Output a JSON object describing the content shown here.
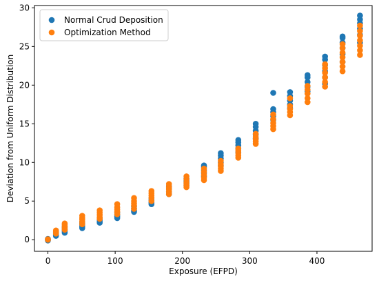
{
  "chart_data": {
    "type": "scatter",
    "title": "",
    "xlabel": "Exposure (EFPD)",
    "ylabel": "Deviation from Uniform Distribution",
    "xlim": [
      -20,
      482
    ],
    "ylim": [
      -1.5,
      30.3
    ],
    "xticks": [
      0,
      100,
      200,
      300,
      400
    ],
    "yticks": [
      0,
      5,
      10,
      15,
      20,
      25,
      30
    ],
    "grid": false,
    "legend_position": "top-left",
    "series": [
      {
        "name": "Normal Crud Deposition",
        "color": "#1f77b4",
        "points": [
          [
            0,
            0
          ],
          [
            0,
            0.1
          ],
          [
            0,
            -0.1
          ],
          [
            12,
            0.5
          ],
          [
            12,
            0.7
          ],
          [
            12,
            0.9
          ],
          [
            12,
            1.0
          ],
          [
            25,
            0.9
          ],
          [
            25,
            1.1
          ],
          [
            25,
            1.3
          ],
          [
            25,
            1.5
          ],
          [
            25,
            1.7
          ],
          [
            51,
            1.5
          ],
          [
            51,
            1.7
          ],
          [
            51,
            1.9
          ],
          [
            51,
            2.1
          ],
          [
            51,
            2.3
          ],
          [
            77,
            2.2
          ],
          [
            77,
            2.4
          ],
          [
            77,
            2.6
          ],
          [
            77,
            2.8
          ],
          [
            103,
            2.8
          ],
          [
            103,
            3.0
          ],
          [
            103,
            3.2
          ],
          [
            103,
            3.5
          ],
          [
            128,
            3.6
          ],
          [
            128,
            3.8
          ],
          [
            128,
            4.0
          ],
          [
            128,
            4.3
          ],
          [
            154,
            4.6
          ],
          [
            154,
            4.8
          ],
          [
            154,
            5.1
          ],
          [
            154,
            5.4
          ],
          [
            180,
            5.9
          ],
          [
            180,
            6.2
          ],
          [
            180,
            6.6
          ],
          [
            180,
            6.9
          ],
          [
            206,
            7.0
          ],
          [
            206,
            7.3
          ],
          [
            206,
            7.6
          ],
          [
            206,
            7.9
          ],
          [
            232,
            8.2
          ],
          [
            232,
            8.6
          ],
          [
            232,
            9.0
          ],
          [
            232,
            9.4
          ],
          [
            232,
            9.6
          ],
          [
            257,
            9.6
          ],
          [
            257,
            10.0
          ],
          [
            257,
            10.5
          ],
          [
            257,
            10.9
          ],
          [
            257,
            11.2
          ],
          [
            283,
            11.3
          ],
          [
            283,
            11.8
          ],
          [
            283,
            12.2
          ],
          [
            283,
            12.6
          ],
          [
            283,
            12.9
          ],
          [
            309,
            13.1
          ],
          [
            309,
            13.6
          ],
          [
            309,
            14.1
          ],
          [
            309,
            14.6
          ],
          [
            309,
            15.0
          ],
          [
            335,
            15.5
          ],
          [
            335,
            16.0
          ],
          [
            335,
            16.5
          ],
          [
            335,
            16.9
          ],
          [
            335,
            19.0
          ],
          [
            360,
            17.0
          ],
          [
            360,
            17.5
          ],
          [
            360,
            18.0
          ],
          [
            360,
            18.6
          ],
          [
            360,
            19.1
          ],
          [
            386,
            19.2
          ],
          [
            386,
            19.8
          ],
          [
            386,
            20.4
          ],
          [
            386,
            21.0
          ],
          [
            386,
            21.3
          ],
          [
            412,
            20.2
          ],
          [
            412,
            21.0
          ],
          [
            412,
            21.8
          ],
          [
            412,
            22.6
          ],
          [
            412,
            23.3
          ],
          [
            412,
            23.7
          ],
          [
            438,
            23.0
          ],
          [
            438,
            24.0
          ],
          [
            438,
            24.8
          ],
          [
            438,
            25.5
          ],
          [
            438,
            26.1
          ],
          [
            438,
            26.3
          ],
          [
            464,
            25.5
          ],
          [
            464,
            26.5
          ],
          [
            464,
            27.3
          ],
          [
            464,
            28.0
          ],
          [
            464,
            28.5
          ],
          [
            464,
            29.0
          ]
        ]
      },
      {
        "name": "Optimization Method",
        "color": "#ff7f0e",
        "points": [
          [
            0,
            0
          ],
          [
            0,
            0.05
          ],
          [
            12,
            0.8
          ],
          [
            12,
            1.0
          ],
          [
            12,
            1.2
          ],
          [
            25,
            1.3
          ],
          [
            25,
            1.5
          ],
          [
            25,
            1.7
          ],
          [
            25,
            1.9
          ],
          [
            25,
            2.1
          ],
          [
            51,
            2.0
          ],
          [
            51,
            2.3
          ],
          [
            51,
            2.6
          ],
          [
            51,
            2.8
          ],
          [
            51,
            3.1
          ],
          [
            77,
            2.7
          ],
          [
            77,
            2.9
          ],
          [
            77,
            3.2
          ],
          [
            77,
            3.5
          ],
          [
            77,
            3.8
          ],
          [
            103,
            3.3
          ],
          [
            103,
            3.6
          ],
          [
            103,
            3.9
          ],
          [
            103,
            4.2
          ],
          [
            103,
            4.6
          ],
          [
            128,
            4.0
          ],
          [
            128,
            4.4
          ],
          [
            128,
            4.7
          ],
          [
            128,
            5.0
          ],
          [
            128,
            5.4
          ],
          [
            154,
            5.0
          ],
          [
            154,
            5.4
          ],
          [
            154,
            5.7
          ],
          [
            154,
            6.0
          ],
          [
            154,
            6.3
          ],
          [
            180,
            5.9
          ],
          [
            180,
            6.2
          ],
          [
            180,
            6.5
          ],
          [
            180,
            6.8
          ],
          [
            180,
            7.2
          ],
          [
            206,
            6.8
          ],
          [
            206,
            7.1
          ],
          [
            206,
            7.4
          ],
          [
            206,
            7.8
          ],
          [
            206,
            8.2
          ],
          [
            232,
            7.7
          ],
          [
            232,
            8.0
          ],
          [
            232,
            8.4
          ],
          [
            232,
            8.8
          ],
          [
            232,
            9.2
          ],
          [
            257,
            8.9
          ],
          [
            257,
            9.2
          ],
          [
            257,
            9.5
          ],
          [
            257,
            9.8
          ],
          [
            257,
            10.2
          ],
          [
            283,
            10.6
          ],
          [
            283,
            10.9
          ],
          [
            283,
            11.2
          ],
          [
            283,
            11.5
          ],
          [
            283,
            11.8
          ],
          [
            309,
            12.4
          ],
          [
            309,
            12.7
          ],
          [
            309,
            13.0
          ],
          [
            309,
            13.3
          ],
          [
            309,
            13.7
          ],
          [
            335,
            14.3
          ],
          [
            335,
            14.7
          ],
          [
            335,
            15.1
          ],
          [
            335,
            15.6
          ],
          [
            335,
            16.2
          ],
          [
            360,
            16.1
          ],
          [
            360,
            16.5
          ],
          [
            360,
            16.9
          ],
          [
            360,
            17.3
          ],
          [
            360,
            18.3
          ],
          [
            386,
            17.8
          ],
          [
            386,
            18.3
          ],
          [
            386,
            18.9
          ],
          [
            386,
            19.4
          ],
          [
            386,
            19.9
          ],
          [
            412,
            19.8
          ],
          [
            412,
            20.4
          ],
          [
            412,
            21.0
          ],
          [
            412,
            21.6
          ],
          [
            412,
            22.2
          ],
          [
            412,
            22.7
          ],
          [
            438,
            21.8
          ],
          [
            438,
            22.4
          ],
          [
            438,
            23.0
          ],
          [
            438,
            23.6
          ],
          [
            438,
            24.2
          ],
          [
            438,
            24.8
          ],
          [
            438,
            25.3
          ],
          [
            464,
            23.9
          ],
          [
            464,
            24.5
          ],
          [
            464,
            25.1
          ],
          [
            464,
            25.8
          ],
          [
            464,
            26.4
          ],
          [
            464,
            27.0
          ],
          [
            464,
            27.7
          ]
        ]
      }
    ]
  }
}
